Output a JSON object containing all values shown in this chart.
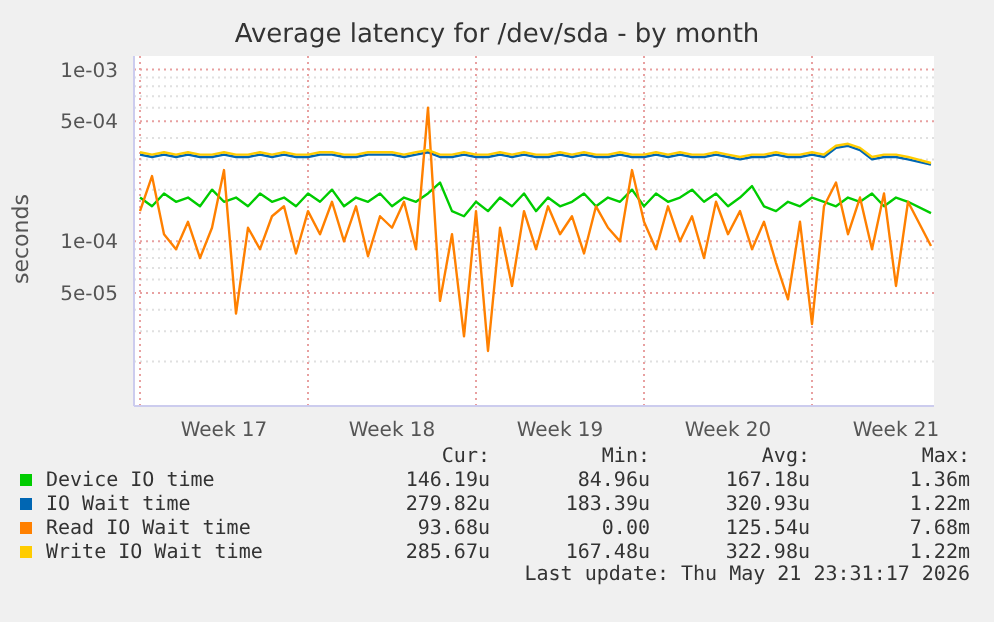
{
  "chart_data": {
    "type": "line",
    "title": "Average latency for /dev/sda - by month",
    "ylabel": "seconds",
    "log": "y",
    "grid": true,
    "legend": "bottom",
    "marker": "none",
    "line_style": "solid",
    "x": [
      "2026-04-19T00:00",
      "2026-04-19T12:00",
      "2026-04-20T00:00",
      "2026-04-20T12:00",
      "2026-04-21T00:00",
      "2026-04-21T12:00",
      "2026-04-22T00:00",
      "2026-04-22T12:00",
      "2026-04-23T00:00",
      "2026-04-23T12:00",
      "2026-04-24T00:00",
      "2026-04-24T12:00",
      "2026-04-25T00:00",
      "2026-04-25T12:00",
      "2026-04-26T00:00",
      "2026-04-26T12:00",
      "2026-04-27T00:00",
      "2026-04-27T12:00",
      "2026-04-28T00:00",
      "2026-04-28T12:00",
      "2026-04-29T00:00",
      "2026-04-29T12:00",
      "2026-04-30T00:00",
      "2026-04-30T12:00",
      "2026-05-01T00:00",
      "2026-05-01T12:00",
      "2026-05-02T00:00",
      "2026-05-02T12:00",
      "2026-05-03T00:00",
      "2026-05-03T12:00",
      "2026-05-04T00:00",
      "2026-05-04T12:00",
      "2026-05-05T00:00",
      "2026-05-05T12:00",
      "2026-05-06T00:00",
      "2026-05-06T12:00",
      "2026-05-07T00:00",
      "2026-05-07T12:00",
      "2026-05-08T00:00",
      "2026-05-08T12:00",
      "2026-05-09T00:00",
      "2026-05-09T12:00",
      "2026-05-10T00:00",
      "2026-05-10T12:00",
      "2026-05-11T00:00",
      "2026-05-11T12:00",
      "2026-05-12T00:00",
      "2026-05-12T12:00",
      "2026-05-13T00:00",
      "2026-05-13T12:00",
      "2026-05-14T00:00",
      "2026-05-14T12:00",
      "2026-05-15T00:00",
      "2026-05-15T12:00",
      "2026-05-16T00:00",
      "2026-05-16T12:00",
      "2026-05-17T00:00",
      "2026-05-17T12:00",
      "2026-05-18T00:00",
      "2026-05-18T12:00",
      "2026-05-19T00:00",
      "2026-05-19T12:00",
      "2026-05-20T00:00",
      "2026-05-20T12:00",
      "2026-05-21T00:00",
      "2026-05-21T23:00"
    ],
    "xlim": [
      "2026-04-18T18:00",
      "2026-05-22T02:00"
    ],
    "xticks": [
      {
        "value": "2026-04-19",
        "label": null
      },
      {
        "value": "2026-04-22T12:00",
        "label": "Week 17"
      },
      {
        "value": "2026-04-26",
        "label": null
      },
      {
        "value": "2026-04-29T12:00",
        "label": "Week 18"
      },
      {
        "value": "2026-05-03",
        "label": null
      },
      {
        "value": "2026-05-06T12:00",
        "label": "Week 19"
      },
      {
        "value": "2026-05-10",
        "label": null
      },
      {
        "value": "2026-05-13T12:00",
        "label": "Week 20"
      },
      {
        "value": "2026-05-17",
        "label": null
      },
      {
        "value": "2026-05-20T12:00",
        "label": "Week 21"
      }
    ],
    "ylim": [
      1.1e-05,
      0.0012
    ],
    "yticks": [
      {
        "value": 2e-05,
        "label": null
      },
      {
        "value": 3e-05,
        "label": null
      },
      {
        "value": 4e-05,
        "label": null
      },
      {
        "value": 5e-05,
        "label": "5e-05"
      },
      {
        "value": 6e-05,
        "label": null
      },
      {
        "value": 7e-05,
        "label": null
      },
      {
        "value": 8e-05,
        "label": null
      },
      {
        "value": 9e-05,
        "label": null
      },
      {
        "value": 0.0001,
        "label": "1e-04"
      },
      {
        "value": 0.0002,
        "label": null
      },
      {
        "value": 0.0003,
        "label": null
      },
      {
        "value": 0.0004,
        "label": null
      },
      {
        "value": 0.0005,
        "label": "5e-04"
      },
      {
        "value": 0.0006,
        "label": null
      },
      {
        "value": 0.0007,
        "label": null
      },
      {
        "value": 0.0008,
        "label": null
      },
      {
        "value": 0.0009,
        "label": null
      },
      {
        "value": 0.001,
        "label": "1e-03"
      }
    ],
    "series": [
      {
        "name": "Device IO time",
        "color": "#00cc00",
        "values": [
          0.00018,
          0.00016,
          0.00019,
          0.00017,
          0.00018,
          0.00016,
          0.0002,
          0.00017,
          0.00018,
          0.00016,
          0.00019,
          0.00017,
          0.00018,
          0.00016,
          0.00019,
          0.00017,
          0.0002,
          0.00016,
          0.00018,
          0.00017,
          0.00019,
          0.00016,
          0.00018,
          0.00017,
          0.00019,
          0.00022,
          0.00015,
          0.00014,
          0.00017,
          0.00015,
          0.00018,
          0.00016,
          0.00019,
          0.00015,
          0.00018,
          0.00016,
          0.00017,
          0.00019,
          0.00016,
          0.00018,
          0.00017,
          0.0002,
          0.00016,
          0.00019,
          0.00017,
          0.00018,
          0.0002,
          0.00017,
          0.00019,
          0.00016,
          0.00018,
          0.00021,
          0.00016,
          0.00015,
          0.00017,
          0.00016,
          0.00018,
          0.00017,
          0.00016,
          0.00018,
          0.00017,
          0.00019,
          0.00016,
          0.00018,
          0.00017,
          0.000146
        ]
      },
      {
        "name": "IO Wait time",
        "color": "#0066b3",
        "values": [
          0.00032,
          0.00031,
          0.00032,
          0.00031,
          0.00032,
          0.00031,
          0.00031,
          0.00032,
          0.00031,
          0.00031,
          0.00032,
          0.00031,
          0.00032,
          0.00031,
          0.00031,
          0.00032,
          0.00032,
          0.00031,
          0.00031,
          0.00032,
          0.00032,
          0.00032,
          0.00031,
          0.00032,
          0.00033,
          0.00031,
          0.00031,
          0.00032,
          0.00031,
          0.00031,
          0.00032,
          0.00031,
          0.00032,
          0.00031,
          0.00031,
          0.00032,
          0.00031,
          0.00032,
          0.00031,
          0.00031,
          0.00032,
          0.00031,
          0.00031,
          0.00032,
          0.00031,
          0.00032,
          0.00031,
          0.00031,
          0.00032,
          0.00031,
          0.0003,
          0.00031,
          0.00031,
          0.00032,
          0.00031,
          0.00031,
          0.00032,
          0.00031,
          0.00035,
          0.00036,
          0.00034,
          0.0003,
          0.00031,
          0.00031,
          0.0003,
          0.00028
        ]
      },
      {
        "name": "Read IO Wait time",
        "color": "#ff8000",
        "values": [
          0.00015,
          0.00024,
          0.00011,
          9e-05,
          0.00013,
          8e-05,
          0.00012,
          0.00026,
          3.8e-05,
          0.00012,
          9e-05,
          0.00014,
          0.00016,
          8.5e-05,
          0.00015,
          0.00011,
          0.00017,
          0.0001,
          0.00016,
          8.2e-05,
          0.00014,
          0.00012,
          0.00017,
          9e-05,
          0.0006,
          4.5e-05,
          0.00011,
          2.8e-05,
          0.00015,
          2.3e-05,
          0.00012,
          5.5e-05,
          0.00015,
          9e-05,
          0.00016,
          0.00011,
          0.00014,
          8.5e-05,
          0.00016,
          0.00012,
          0.0001,
          0.00026,
          0.00013,
          9e-05,
          0.00016,
          0.0001,
          0.00014,
          8e-05,
          0.00017,
          0.00011,
          0.00015,
          9e-05,
          0.00013,
          7.5e-05,
          4.6e-05,
          0.00013,
          3.3e-05,
          0.00016,
          0.00022,
          0.00011,
          0.00018,
          9e-05,
          0.00019,
          5.5e-05,
          0.00017,
          9.4e-05
        ]
      },
      {
        "name": "Write IO Wait time",
        "color": "#ffcc00",
        "values": [
          0.00033,
          0.00032,
          0.00033,
          0.00032,
          0.00033,
          0.00032,
          0.00032,
          0.00033,
          0.00032,
          0.00032,
          0.00033,
          0.00032,
          0.00033,
          0.00032,
          0.00032,
          0.00033,
          0.00033,
          0.00032,
          0.00032,
          0.00033,
          0.00033,
          0.00033,
          0.00032,
          0.00033,
          0.00034,
          0.00032,
          0.00032,
          0.00033,
          0.00032,
          0.00032,
          0.00033,
          0.00032,
          0.00033,
          0.00032,
          0.00032,
          0.00033,
          0.00032,
          0.00033,
          0.00032,
          0.00032,
          0.00033,
          0.00032,
          0.00032,
          0.00033,
          0.00032,
          0.00033,
          0.00032,
          0.00032,
          0.00033,
          0.00032,
          0.00031,
          0.00032,
          0.00032,
          0.00033,
          0.00032,
          0.00032,
          0.00033,
          0.00032,
          0.00036,
          0.00037,
          0.00035,
          0.00031,
          0.00032,
          0.00032,
          0.00031,
          0.000286
        ]
      }
    ],
    "annotations": [
      "Cur:",
      "Min:",
      "Avg:",
      "Max:",
      "146.19u",
      "84.96u",
      "167.18u",
      "1.36m",
      "279.82u",
      "183.39u",
      "320.93u",
      "1.22m",
      "93.68u",
      "0.00",
      "125.54u",
      "7.68m",
      "285.67u",
      "167.48u",
      "322.98u",
      "1.22m",
      "Last update: Thu May 21 23:31:17 2026"
    ]
  }
}
